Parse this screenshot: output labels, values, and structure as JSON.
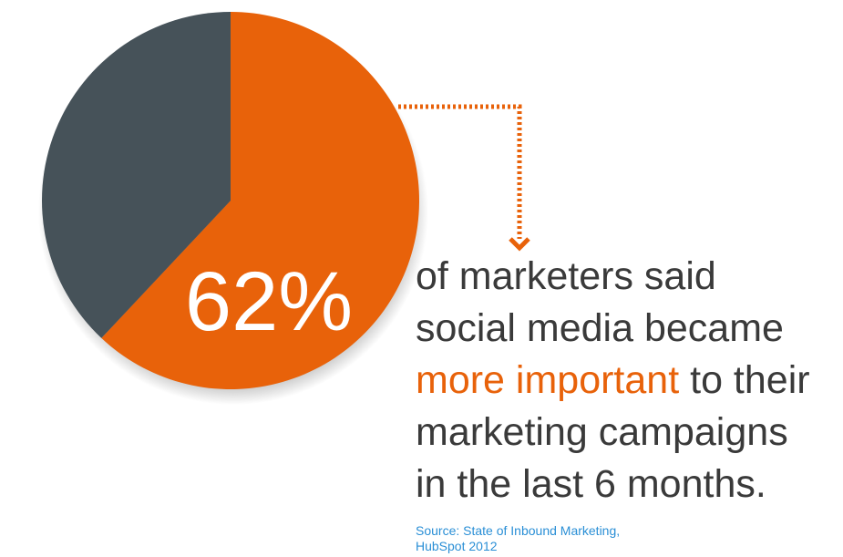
{
  "chart_data": {
    "type": "pie",
    "values": [
      62,
      38
    ],
    "value_labels": [
      "62%",
      null
    ],
    "colors": [
      "#e8620a",
      "#465259"
    ],
    "annotation": {
      "lines": [
        "of marketers said",
        "social media became",
        "to their",
        "marketing campaigns",
        "in the last 6 months."
      ],
      "emphasis": "more important"
    },
    "source": [
      "Source: State of Inbound Marketing,",
      "HubSpot 2012"
    ]
  }
}
